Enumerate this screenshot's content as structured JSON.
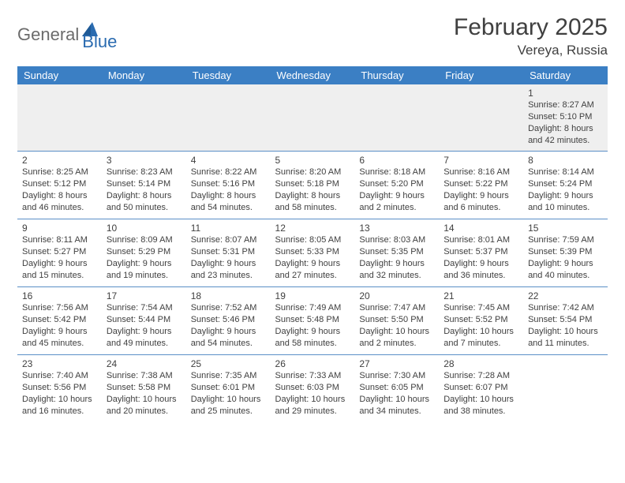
{
  "brand": {
    "part1": "General",
    "part2": "Blue"
  },
  "title": "February 2025",
  "location": "Vereya, Russia",
  "colors": {
    "header_bg": "#3b7fc4",
    "header_text": "#ffffff",
    "rule": "#5a8fc7",
    "body_text": "#404040",
    "first_row_bg": "#efefef",
    "logo_gray": "#6b6b6b",
    "logo_blue": "#2a6bb0",
    "page_bg": "#ffffff"
  },
  "day_names": [
    "Sunday",
    "Monday",
    "Tuesday",
    "Wednesday",
    "Thursday",
    "Friday",
    "Saturday"
  ],
  "weeks": [
    [
      null,
      null,
      null,
      null,
      null,
      null,
      {
        "n": "1",
        "sr": "Sunrise: 8:27 AM",
        "ss": "Sunset: 5:10 PM",
        "d1": "Daylight: 8 hours",
        "d2": "and 42 minutes."
      }
    ],
    [
      {
        "n": "2",
        "sr": "Sunrise: 8:25 AM",
        "ss": "Sunset: 5:12 PM",
        "d1": "Daylight: 8 hours",
        "d2": "and 46 minutes."
      },
      {
        "n": "3",
        "sr": "Sunrise: 8:23 AM",
        "ss": "Sunset: 5:14 PM",
        "d1": "Daylight: 8 hours",
        "d2": "and 50 minutes."
      },
      {
        "n": "4",
        "sr": "Sunrise: 8:22 AM",
        "ss": "Sunset: 5:16 PM",
        "d1": "Daylight: 8 hours",
        "d2": "and 54 minutes."
      },
      {
        "n": "5",
        "sr": "Sunrise: 8:20 AM",
        "ss": "Sunset: 5:18 PM",
        "d1": "Daylight: 8 hours",
        "d2": "and 58 minutes."
      },
      {
        "n": "6",
        "sr": "Sunrise: 8:18 AM",
        "ss": "Sunset: 5:20 PM",
        "d1": "Daylight: 9 hours",
        "d2": "and 2 minutes."
      },
      {
        "n": "7",
        "sr": "Sunrise: 8:16 AM",
        "ss": "Sunset: 5:22 PM",
        "d1": "Daylight: 9 hours",
        "d2": "and 6 minutes."
      },
      {
        "n": "8",
        "sr": "Sunrise: 8:14 AM",
        "ss": "Sunset: 5:24 PM",
        "d1": "Daylight: 9 hours",
        "d2": "and 10 minutes."
      }
    ],
    [
      {
        "n": "9",
        "sr": "Sunrise: 8:11 AM",
        "ss": "Sunset: 5:27 PM",
        "d1": "Daylight: 9 hours",
        "d2": "and 15 minutes."
      },
      {
        "n": "10",
        "sr": "Sunrise: 8:09 AM",
        "ss": "Sunset: 5:29 PM",
        "d1": "Daylight: 9 hours",
        "d2": "and 19 minutes."
      },
      {
        "n": "11",
        "sr": "Sunrise: 8:07 AM",
        "ss": "Sunset: 5:31 PM",
        "d1": "Daylight: 9 hours",
        "d2": "and 23 minutes."
      },
      {
        "n": "12",
        "sr": "Sunrise: 8:05 AM",
        "ss": "Sunset: 5:33 PM",
        "d1": "Daylight: 9 hours",
        "d2": "and 27 minutes."
      },
      {
        "n": "13",
        "sr": "Sunrise: 8:03 AM",
        "ss": "Sunset: 5:35 PM",
        "d1": "Daylight: 9 hours",
        "d2": "and 32 minutes."
      },
      {
        "n": "14",
        "sr": "Sunrise: 8:01 AM",
        "ss": "Sunset: 5:37 PM",
        "d1": "Daylight: 9 hours",
        "d2": "and 36 minutes."
      },
      {
        "n": "15",
        "sr": "Sunrise: 7:59 AM",
        "ss": "Sunset: 5:39 PM",
        "d1": "Daylight: 9 hours",
        "d2": "and 40 minutes."
      }
    ],
    [
      {
        "n": "16",
        "sr": "Sunrise: 7:56 AM",
        "ss": "Sunset: 5:42 PM",
        "d1": "Daylight: 9 hours",
        "d2": "and 45 minutes."
      },
      {
        "n": "17",
        "sr": "Sunrise: 7:54 AM",
        "ss": "Sunset: 5:44 PM",
        "d1": "Daylight: 9 hours",
        "d2": "and 49 minutes."
      },
      {
        "n": "18",
        "sr": "Sunrise: 7:52 AM",
        "ss": "Sunset: 5:46 PM",
        "d1": "Daylight: 9 hours",
        "d2": "and 54 minutes."
      },
      {
        "n": "19",
        "sr": "Sunrise: 7:49 AM",
        "ss": "Sunset: 5:48 PM",
        "d1": "Daylight: 9 hours",
        "d2": "and 58 minutes."
      },
      {
        "n": "20",
        "sr": "Sunrise: 7:47 AM",
        "ss": "Sunset: 5:50 PM",
        "d1": "Daylight: 10 hours",
        "d2": "and 2 minutes."
      },
      {
        "n": "21",
        "sr": "Sunrise: 7:45 AM",
        "ss": "Sunset: 5:52 PM",
        "d1": "Daylight: 10 hours",
        "d2": "and 7 minutes."
      },
      {
        "n": "22",
        "sr": "Sunrise: 7:42 AM",
        "ss": "Sunset: 5:54 PM",
        "d1": "Daylight: 10 hours",
        "d2": "and 11 minutes."
      }
    ],
    [
      {
        "n": "23",
        "sr": "Sunrise: 7:40 AM",
        "ss": "Sunset: 5:56 PM",
        "d1": "Daylight: 10 hours",
        "d2": "and 16 minutes."
      },
      {
        "n": "24",
        "sr": "Sunrise: 7:38 AM",
        "ss": "Sunset: 5:58 PM",
        "d1": "Daylight: 10 hours",
        "d2": "and 20 minutes."
      },
      {
        "n": "25",
        "sr": "Sunrise: 7:35 AM",
        "ss": "Sunset: 6:01 PM",
        "d1": "Daylight: 10 hours",
        "d2": "and 25 minutes."
      },
      {
        "n": "26",
        "sr": "Sunrise: 7:33 AM",
        "ss": "Sunset: 6:03 PM",
        "d1": "Daylight: 10 hours",
        "d2": "and 29 minutes."
      },
      {
        "n": "27",
        "sr": "Sunrise: 7:30 AM",
        "ss": "Sunset: 6:05 PM",
        "d1": "Daylight: 10 hours",
        "d2": "and 34 minutes."
      },
      {
        "n": "28",
        "sr": "Sunrise: 7:28 AM",
        "ss": "Sunset: 6:07 PM",
        "d1": "Daylight: 10 hours",
        "d2": "and 38 minutes."
      },
      null
    ]
  ]
}
